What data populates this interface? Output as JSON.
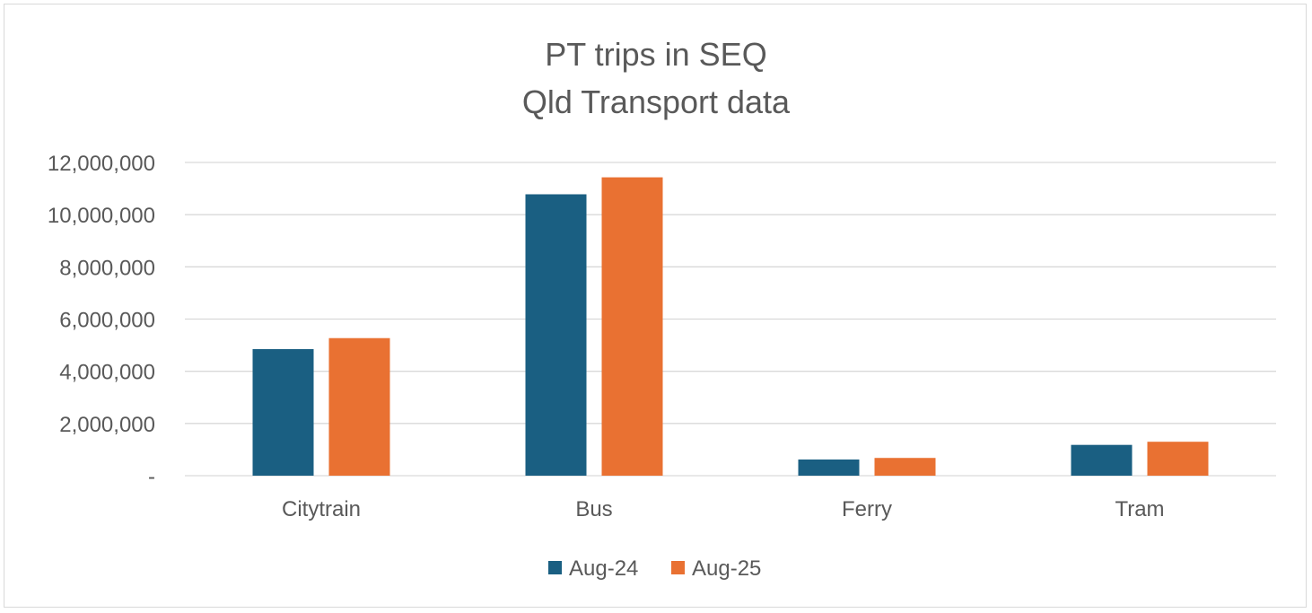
{
  "chart_data": {
    "type": "bar",
    "title_line1": "PT trips in SEQ",
    "title_line2": "Qld Transport data",
    "xlabel": "",
    "ylabel": "",
    "categories": [
      "Citytrain",
      "Bus",
      "Ferry",
      "Tram"
    ],
    "series": [
      {
        "name": "Aug-24",
        "color": "#1a5f82",
        "values": [
          4850000,
          10780000,
          620000,
          1180000
        ]
      },
      {
        "name": "Aug-25",
        "color": "#e97132",
        "values": [
          5270000,
          11430000,
          680000,
          1300000
        ]
      }
    ],
    "ylim": [
      0,
      12000000
    ],
    "yticks": [
      0,
      2000000,
      4000000,
      6000000,
      8000000,
      10000000,
      12000000
    ],
    "ytick_labels": [
      "-",
      "2,000,000",
      "4,000,000",
      "6,000,000",
      "8,000,000",
      "10,000,000",
      "12,000,000"
    ],
    "grid": true,
    "legend_position": "bottom"
  }
}
